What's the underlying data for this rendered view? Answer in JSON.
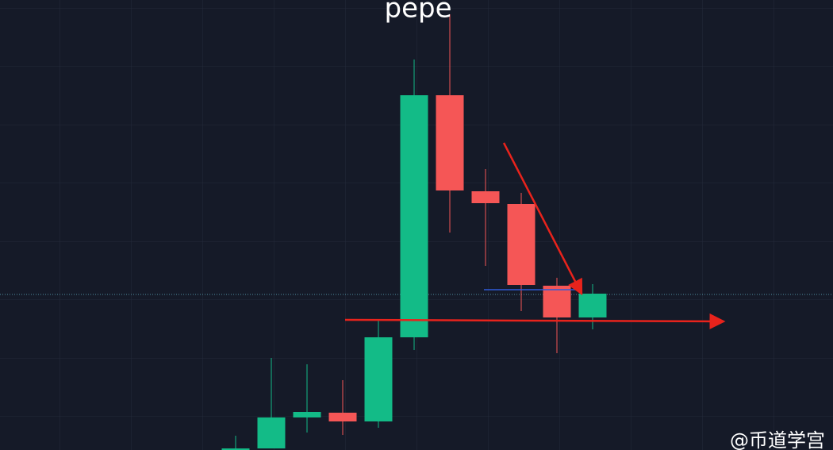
{
  "chart_data": {
    "type": "candlestick",
    "title": "pepe",
    "watermark": "@币道学宫",
    "categories": [
      null,
      null,
      null,
      null,
      null,
      null,
      null,
      null,
      null,
      null,
      null
    ],
    "open": [
      0,
      2,
      41,
      47,
      36,
      142,
      447,
      326,
      310,
      207,
      167
    ],
    "close": [
      2,
      41,
      48,
      36,
      142,
      447,
      327,
      311,
      208,
      167,
      197
    ],
    "high": [
      18,
      116,
      108,
      88,
      163,
      492,
      549,
      354,
      324,
      217,
      209
    ],
    "low": [
      0,
      2,
      22,
      19,
      28,
      126,
      274,
      232,
      175,
      122,
      152
    ],
    "up_color": "#13bb87",
    "down_color": "#f55656",
    "last_price": 196,
    "ylim": [
      0,
      567
    ]
  }
}
